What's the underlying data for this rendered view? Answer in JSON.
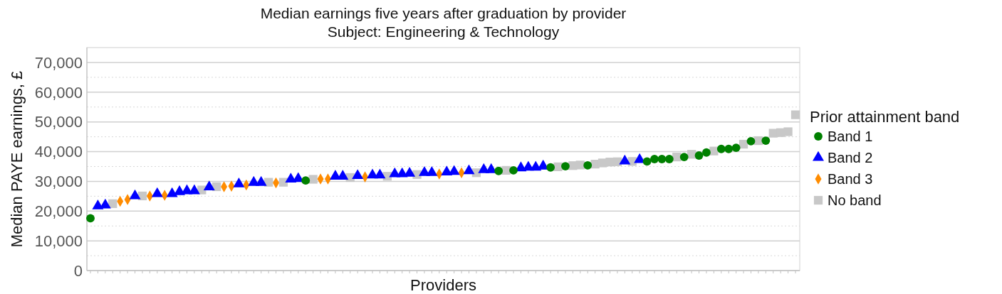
{
  "chart_data": {
    "type": "scatter",
    "title": "Median earnings five years after graduation by provider",
    "subtitle": "Subject: Engineering & Technology",
    "xlabel": "Providers",
    "ylabel": "Median PAYE earnings, £",
    "legend_title": "Prior attainment band",
    "legend": "right",
    "grid": "y",
    "categories": [
      null,
      null,
      null,
      null,
      null,
      null,
      null,
      null,
      null,
      null,
      null,
      null,
      null,
      null,
      null,
      null,
      null,
      null,
      null,
      null,
      null,
      null,
      null,
      null,
      null,
      null,
      null,
      null,
      null,
      null,
      null,
      null,
      null,
      null,
      null,
      null,
      null,
      null,
      null,
      null,
      null,
      null,
      null,
      null,
      null,
      null,
      null,
      null,
      null,
      null,
      null,
      null,
      null,
      null,
      null,
      null,
      null,
      null,
      null,
      null,
      null,
      null,
      null,
      null,
      null,
      null,
      null,
      null,
      null,
      null,
      null,
      null,
      null,
      null,
      null,
      null,
      null,
      null,
      null,
      null,
      null,
      null,
      null,
      null,
      null,
      null,
      null,
      null,
      null,
      null,
      null,
      null,
      null,
      null,
      null,
      null
    ],
    "ylim": [
      0,
      75000
    ],
    "yticks": [
      0,
      {
        "value": 5000,
        "label": null
      },
      {
        "value": 10000,
        "label": "10,000"
      },
      {
        "value": 15000,
        "label": null
      },
      {
        "value": 20000,
        "label": "20,000"
      },
      {
        "value": 25000,
        "label": null
      },
      {
        "value": 30000,
        "label": "30,000"
      },
      {
        "value": 35000,
        "label": null
      },
      {
        "value": 40000,
        "label": "40,000"
      },
      {
        "value": 45000,
        "label": null
      },
      {
        "value": 50000,
        "label": "50,000"
      },
      {
        "value": 55000,
        "label": null
      },
      {
        "value": 60000,
        "label": "60,000"
      },
      {
        "value": 65000,
        "label": null
      },
      {
        "value": 70000,
        "label": "70,000"
      }
    ],
    "series": [
      {
        "name": "Band 1",
        "color": "#008000",
        "marker": "circle",
        "values": [
          17600,
          null,
          null,
          null,
          null,
          null,
          null,
          null,
          null,
          null,
          null,
          null,
          null,
          null,
          null,
          null,
          null,
          null,
          null,
          null,
          null,
          null,
          null,
          null,
          null,
          null,
          null,
          null,
          null,
          30300,
          null,
          null,
          null,
          null,
          null,
          null,
          null,
          null,
          null,
          null,
          null,
          null,
          null,
          null,
          null,
          null,
          null,
          null,
          null,
          null,
          null,
          null,
          null,
          null,
          null,
          33500,
          null,
          33700,
          null,
          null,
          null,
          null,
          34700,
          null,
          35100,
          null,
          null,
          35400,
          null,
          null,
          null,
          null,
          null,
          null,
          null,
          36700,
          37500,
          37500,
          37500,
          null,
          38200,
          null,
          38700,
          39700,
          null,
          40900,
          40900,
          41300,
          null,
          43500,
          null,
          43700,
          null,
          null,
          null,
          null
        ]
      },
      {
        "name": "Band 2",
        "color": "#0000ff",
        "marker": "triangle",
        "values": [
          null,
          21700,
          22000,
          null,
          null,
          null,
          25100,
          null,
          null,
          25800,
          null,
          25800,
          26500,
          26800,
          26800,
          null,
          28100,
          null,
          null,
          null,
          29100,
          null,
          29600,
          29600,
          null,
          null,
          null,
          30700,
          30900,
          null,
          null,
          null,
          null,
          31700,
          31700,
          null,
          31900,
          null,
          32100,
          32100,
          null,
          32500,
          32500,
          32700,
          null,
          32900,
          32900,
          null,
          33100,
          33300,
          null,
          33500,
          null,
          33900,
          33900,
          null,
          null,
          null,
          34500,
          34700,
          34700,
          35100,
          null,
          null,
          null,
          null,
          null,
          null,
          null,
          null,
          null,
          null,
          36800,
          null,
          37300,
          null,
          null,
          null,
          null,
          null,
          null,
          null,
          null,
          null,
          null,
          null,
          null,
          null,
          null,
          null,
          null,
          null,
          null,
          null,
          null,
          null
        ]
      },
      {
        "name": "Band 3",
        "color": "#ff8c00",
        "marker": "diamond",
        "values": [
          null,
          null,
          null,
          null,
          23300,
          23900,
          null,
          null,
          25100,
          null,
          25300,
          null,
          null,
          null,
          null,
          null,
          null,
          null,
          28200,
          28400,
          null,
          28800,
          null,
          null,
          null,
          29500,
          null,
          null,
          null,
          null,
          null,
          30800,
          30800,
          null,
          null,
          null,
          null,
          31500,
          null,
          null,
          null,
          null,
          null,
          null,
          null,
          null,
          null,
          32500,
          null,
          null,
          32900,
          null,
          null,
          null,
          null,
          null,
          null,
          null,
          null,
          null,
          null,
          null,
          null,
          null,
          null,
          null,
          null,
          null,
          null,
          null,
          null,
          null,
          null,
          null,
          null,
          null,
          null,
          null,
          null,
          null,
          null,
          null,
          null,
          null,
          null,
          null,
          null,
          null,
          null,
          null,
          null,
          null,
          null,
          null,
          null,
          null
        ]
      },
      {
        "name": "No band",
        "color": "#c8c8c8",
        "marker": "square",
        "values": [
          null,
          null,
          null,
          22500,
          null,
          null,
          null,
          25100,
          null,
          null,
          null,
          null,
          null,
          null,
          null,
          27100,
          null,
          28200,
          null,
          null,
          null,
          null,
          null,
          null,
          29700,
          null,
          29700,
          null,
          null,
          null,
          30700,
          null,
          null,
          null,
          null,
          31300,
          null,
          null,
          null,
          null,
          31700,
          null,
          null,
          null,
          32300,
          null,
          null,
          null,
          null,
          null,
          null,
          null,
          32900,
          null,
          null,
          null,
          33700,
          null,
          null,
          null,
          null,
          null,
          null,
          34900,
          null,
          35300,
          35500,
          null,
          35800,
          36200,
          36500,
          36600,
          null,
          36700,
          null,
          null,
          null,
          null,
          null,
          38200,
          null,
          39100,
          null,
          null,
          40200,
          null,
          null,
          null,
          42500,
          null,
          43700,
          null,
          46200,
          46400,
          46700,
          52400
        ]
      }
    ]
  }
}
